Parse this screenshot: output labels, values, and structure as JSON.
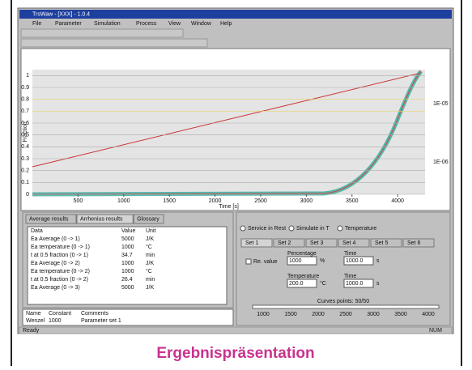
{
  "window": {
    "title": "TrsWaw - [XXX] - 1.0.4"
  },
  "menu": [
    "File",
    "Parameter",
    "Simulation",
    "Process",
    "View",
    "Window",
    "Help"
  ],
  "plot": {
    "xlabel": "Time [s]",
    "ylabel": "Fraction",
    "xlim": [
      0,
      4300
    ],
    "ylim": [
      0,
      1.05
    ],
    "xticks": [
      500,
      1000,
      1500,
      2000,
      2500,
      3000,
      3500,
      4000
    ],
    "yticks": [
      0,
      0.1,
      0.2,
      0.3,
      0.4,
      0.5,
      0.6,
      0.7,
      0.8,
      0.9,
      1
    ],
    "right_labels": [
      "1E-05",
      "1E-06"
    ]
  },
  "left_panel": {
    "tabs": [
      "Average results",
      "Arrhenius results",
      "Glossary"
    ],
    "columns": [
      "Data",
      "Value",
      "Unit"
    ],
    "rows": [
      [
        "Ea Average (0 -> 1)",
        "5000",
        "J/K"
      ],
      [
        "Ea temperature (0 -> 1)",
        "1000",
        "°C"
      ],
      [
        "t at 0.5 fraction (0 -> 1)",
        "34.7",
        "min"
      ],
      [
        "Ea Average (0 -> 2)",
        "1000",
        "J/K"
      ],
      [
        "Ea temperature (0 -> 2)",
        "1000",
        "°C"
      ],
      [
        "t at 0.5 fraction (0 -> 2)",
        "26.4",
        "min"
      ],
      [
        "Ea Average (0 -> 3)",
        "5000",
        "J/K"
      ]
    ]
  },
  "bottom_list": {
    "columns": [
      "Name",
      "Constant",
      "Comments"
    ],
    "row": [
      "Wenzel",
      "1000",
      "Parameter set 1"
    ]
  },
  "right_panel": {
    "options": [
      "Service in Rest",
      "Simulate in T",
      "Temperature"
    ],
    "tabs": [
      "Set 1",
      "Set 2",
      "Set 3",
      "Set 4",
      "Set 5",
      "Set 6"
    ],
    "checkbox": "Re. value",
    "fields": [
      {
        "label": "Percentage",
        "value": "1000",
        "unit": "%"
      },
      {
        "label": "Time",
        "value": "1000.0",
        "unit": "s"
      },
      {
        "label": "Temperature",
        "value": "200.0",
        "unit": "°C"
      },
      {
        "label": "Time",
        "value": "1000.0",
        "unit": "s"
      }
    ],
    "slider_label": "Curves points: 50/50",
    "slider_ticks": [
      "1000",
      "1500",
      "2000",
      "2500",
      "3000",
      "3500",
      "4000"
    ]
  },
  "status": "Ready",
  "status_right": "NUM",
  "caption": "Ergebnispräsentation"
}
